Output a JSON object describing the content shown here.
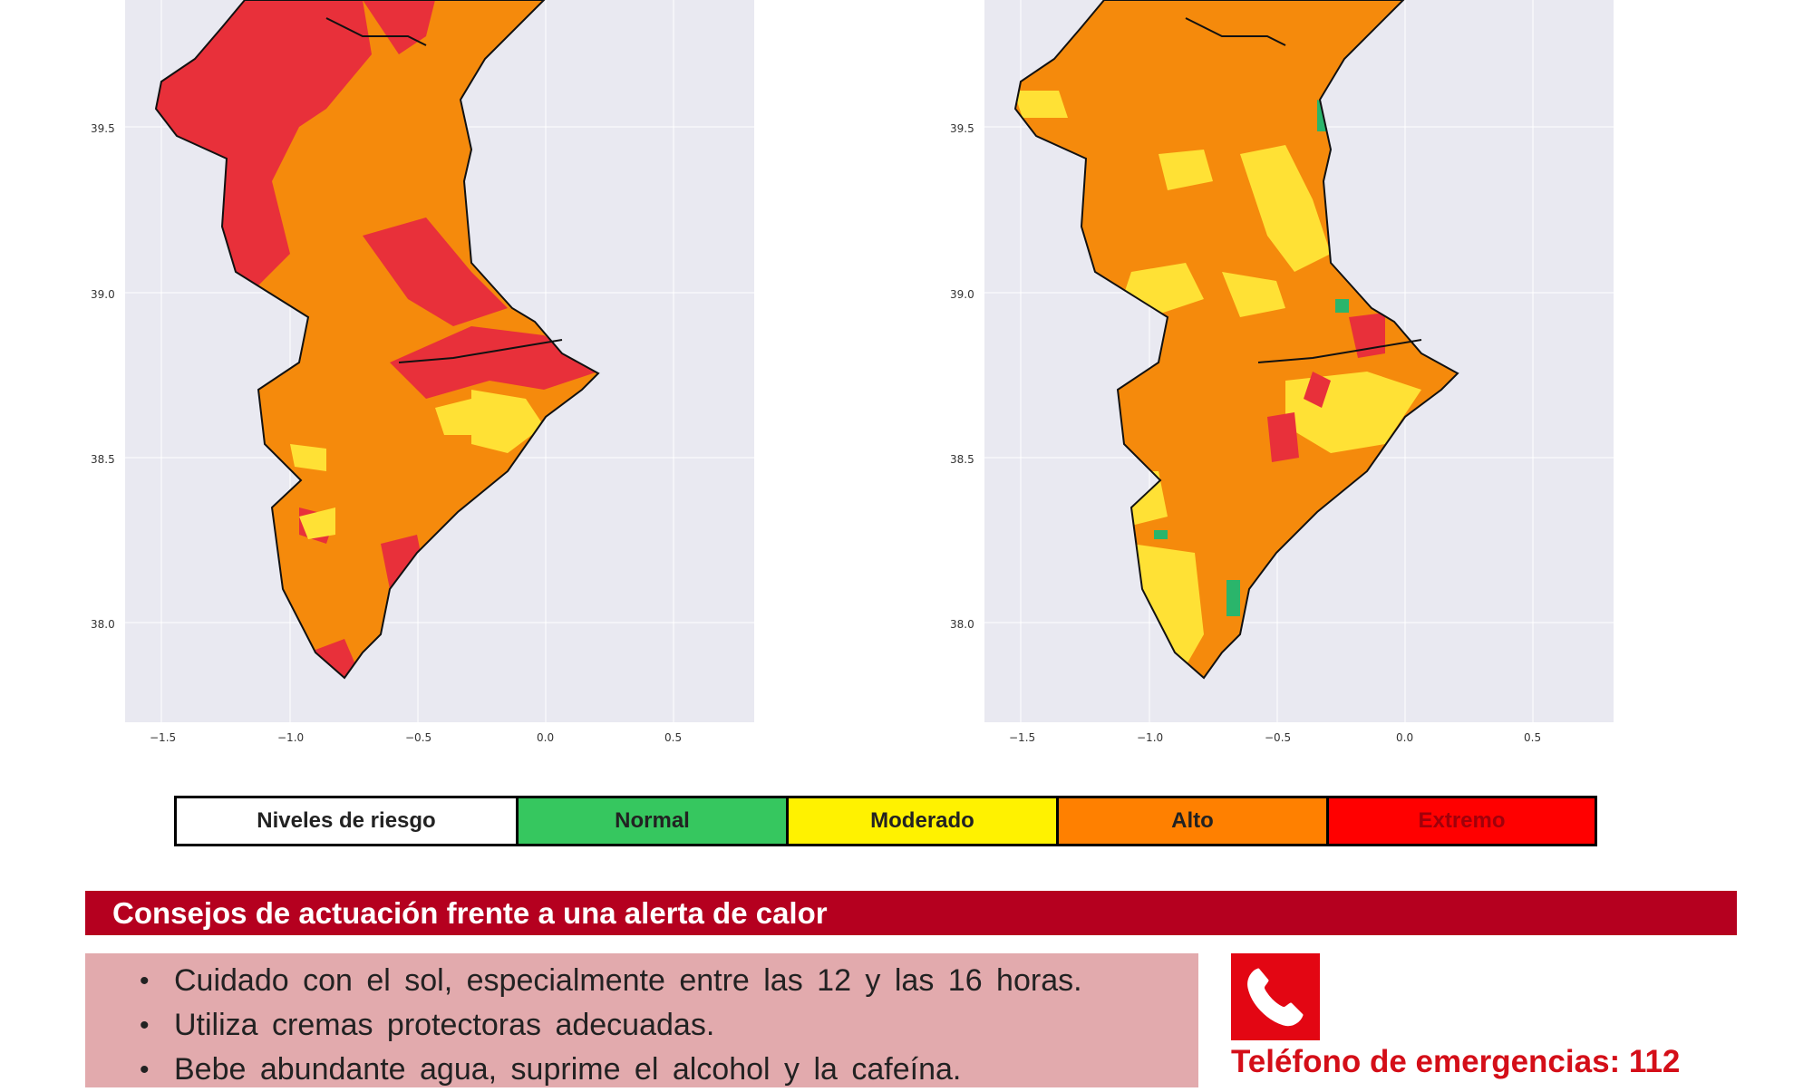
{
  "maps": [
    {
      "name": "left",
      "y_ticks": [
        "39.5",
        "39.0",
        "38.5",
        "38.0"
      ],
      "x_ticks": [
        "−1.5",
        "−1.0",
        "−0.5",
        "0.0",
        "0.5"
      ]
    },
    {
      "name": "right",
      "y_ticks": [
        "39.5",
        "39.0",
        "38.5",
        "38.0"
      ],
      "x_ticks": [
        "−1.5",
        "−1.0",
        "−0.5",
        "0.0",
        "0.5"
      ]
    }
  ],
  "legend": {
    "items": [
      {
        "label": "Niveles de riesgo",
        "color": "#ffffff"
      },
      {
        "label": "Normal",
        "color": "#36c75f"
      },
      {
        "label": "Moderado",
        "color": "#fff200"
      },
      {
        "label": "Alto",
        "color": "#ff8000"
      },
      {
        "label": "Extremo",
        "color": "#ff0000"
      }
    ]
  },
  "advice": {
    "title": "Consejos de actuación frente a una alerta de calor",
    "items": [
      "Cuidado con el sol, especialmente entre las 12 y las 16 horas.",
      "Utiliza cremas protectoras adecuadas.",
      "Bebe abundante agua, suprime el alcohol y la cafeína."
    ]
  },
  "emergency": {
    "text": "Teléfono de emergencias: 112",
    "icon": "phone-icon"
  },
  "colors": {
    "extreme": "#e8303a",
    "high": "#f58a0c",
    "moderate": "#ffe135",
    "normal": "#2ab56b",
    "plot_bg": "#e9e9f1",
    "banner": "#b5001f",
    "advice_bg": "#e2aaad"
  }
}
